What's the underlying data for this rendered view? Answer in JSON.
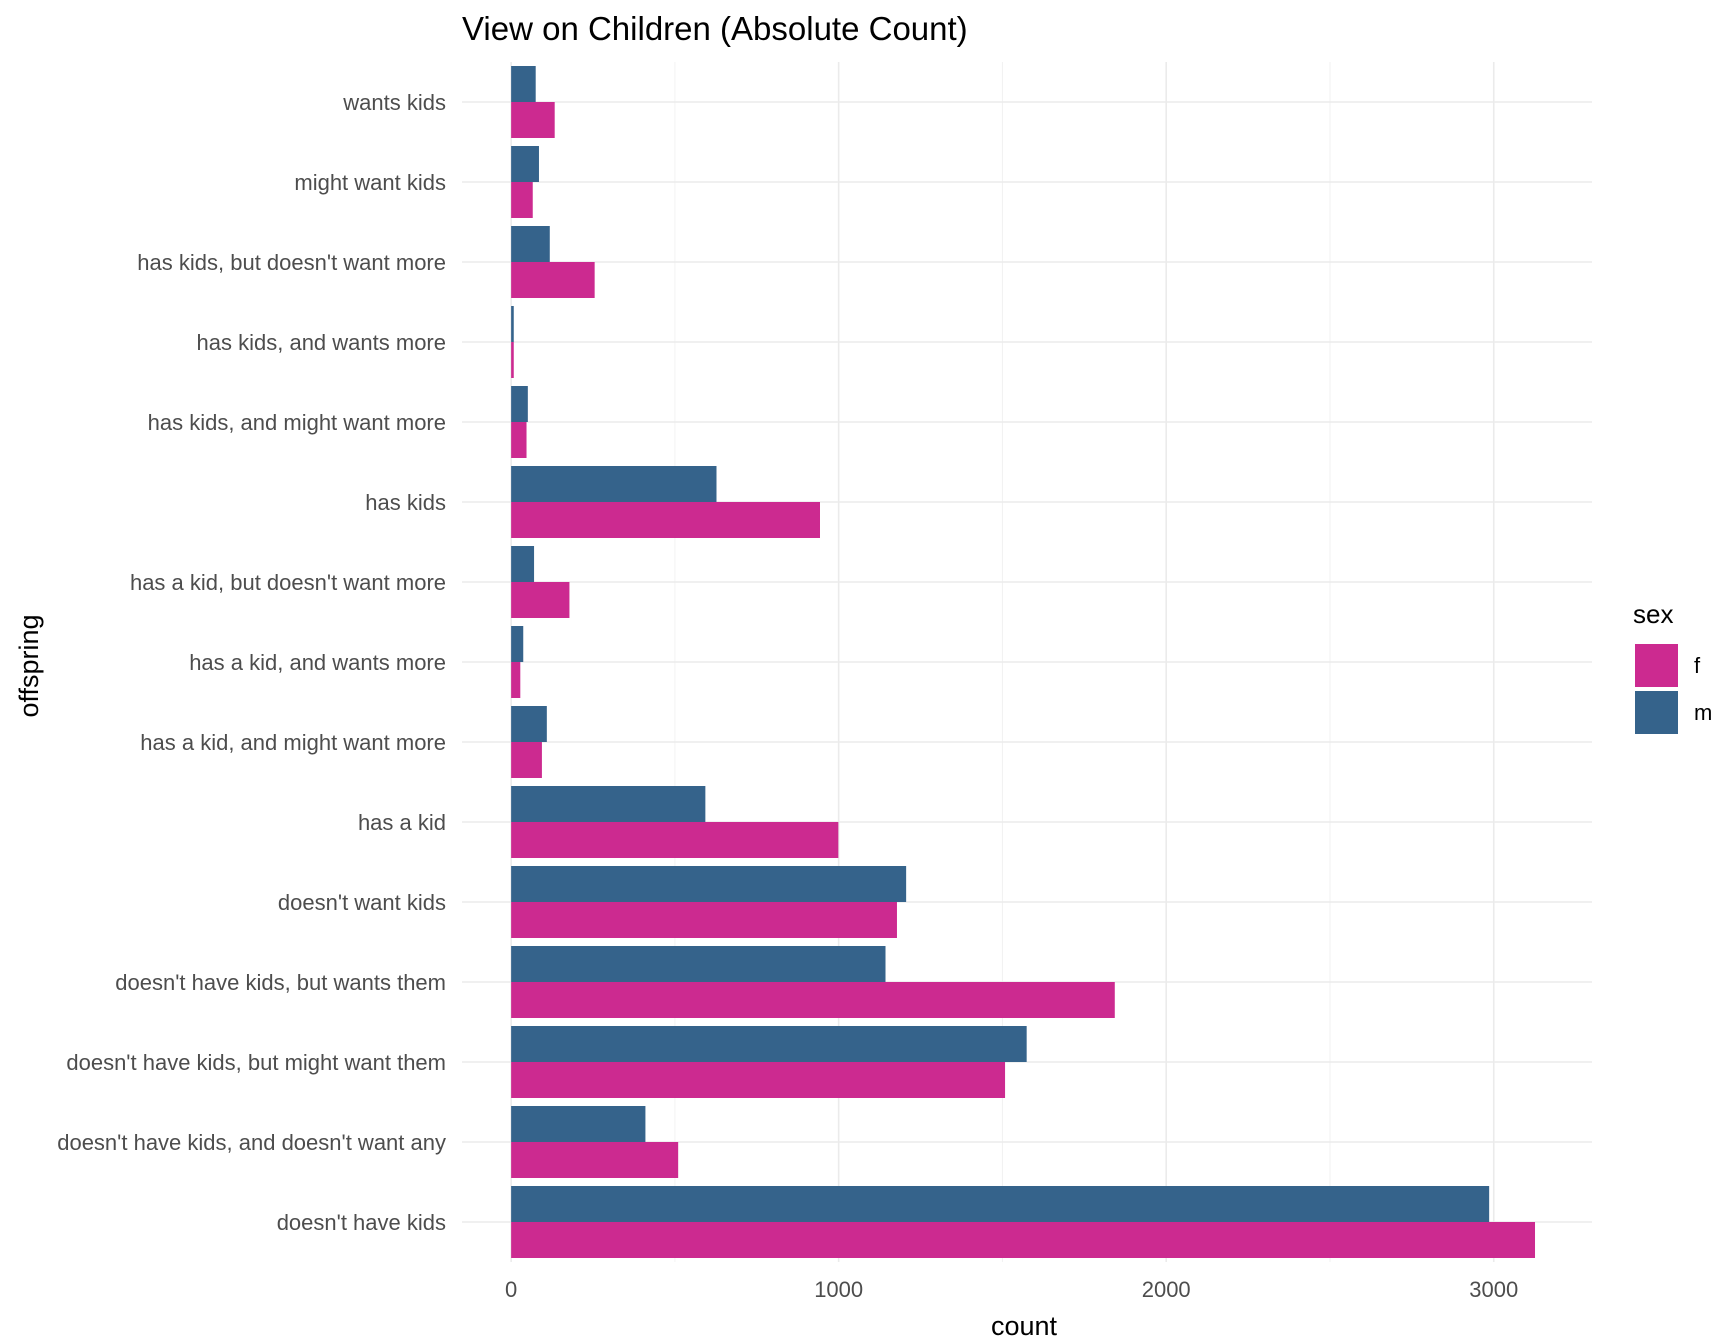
{
  "chart_data": {
    "type": "bar",
    "orientation": "horizontal",
    "title": "View on Children (Absolute Count)",
    "xlabel": "count",
    "ylabel": "offspring",
    "xlim": [
      -150,
      3300
    ],
    "x_ticks": [
      0,
      1000,
      2000,
      3000
    ],
    "x_minor_ticks": [
      500,
      1500,
      2500
    ],
    "grid": true,
    "legend": {
      "title": "sex",
      "placement": "right",
      "entries": [
        {
          "key": "f",
          "label": "f",
          "color": "#cc2a90"
        },
        {
          "key": "m",
          "label": "m",
          "color": "#35638b"
        }
      ]
    },
    "categories": [
      "wants kids",
      "might want kids",
      "has kids, but doesn't want more",
      "has kids, and wants more",
      "has kids, and might want more",
      "has kids",
      "has a kid, but doesn't want more",
      "has a kid, and wants more",
      "has a kid, and might want more",
      "has a kid",
      "doesn't want kids",
      "doesn't have kids, but wants them",
      "doesn't have kids, but might want them",
      "doesn't have kids, and doesn't want any",
      "doesn't have kids"
    ],
    "series": [
      {
        "name": "f",
        "color": "#cc2a90",
        "values": [
          133,
          66,
          255,
          8,
          47,
          943,
          178,
          28,
          94,
          999,
          1178,
          1843,
          1508,
          510,
          3126
        ]
      },
      {
        "name": "m",
        "color": "#35638b",
        "values": [
          75,
          85,
          118,
          8,
          51,
          627,
          70,
          37,
          109,
          593,
          1206,
          1143,
          1574,
          410,
          2986
        ]
      }
    ]
  }
}
